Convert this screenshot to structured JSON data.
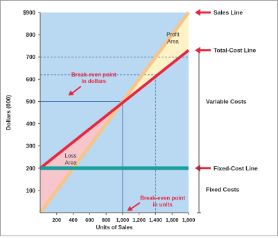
{
  "chart_data": {
    "type": "line",
    "xlabel": "Units of Sales",
    "ylabel": "Dollars (000)",
    "xlim": [
      0,
      1800
    ],
    "ylim": [
      0,
      900
    ],
    "x_ticks": [
      {
        "value": 200,
        "label": "200"
      },
      {
        "value": 400,
        "label": "400"
      },
      {
        "value": 600,
        "label": "600"
      },
      {
        "value": 800,
        "label": "800"
      },
      {
        "value": 1000,
        "label": "1,000"
      },
      {
        "value": 1200,
        "label": "1,200"
      },
      {
        "value": 1400,
        "label": "1,400"
      },
      {
        "value": 1600,
        "label": "1,600"
      },
      {
        "value": 1800,
        "label": "1,800"
      }
    ],
    "y_ticks": [
      {
        "value": 100,
        "label": "100"
      },
      {
        "value": 200,
        "label": "200"
      },
      {
        "value": 300,
        "label": "300"
      },
      {
        "value": 400,
        "label": "400"
      },
      {
        "value": 500,
        "label": "500"
      },
      {
        "value": 600,
        "label": "600"
      },
      {
        "value": 700,
        "label": "700"
      },
      {
        "value": 800,
        "label": "800"
      },
      {
        "value": 900,
        "label": "$900"
      }
    ],
    "series": [
      {
        "name": "Sales Line",
        "color": "#f7c58a",
        "points": [
          [
            0,
            0
          ],
          [
            1800,
            900
          ]
        ]
      },
      {
        "name": "Total-Cost Line",
        "color": "#e8273e",
        "points": [
          [
            0,
            200
          ],
          [
            1800,
            730
          ]
        ]
      },
      {
        "name": "Fixed-Cost Line",
        "color": "#1a9f9c",
        "points": [
          [
            0,
            200
          ],
          [
            1800,
            200
          ]
        ]
      }
    ],
    "legend": {
      "placement": "right",
      "items": [
        {
          "label": "Sales Line",
          "y": 900
        },
        {
          "label": "Total-Cost Line",
          "y": 730
        },
        {
          "label": "Fixed-Cost Line",
          "y": 200
        }
      ]
    },
    "brackets": [
      {
        "label": "Variable Costs",
        "y_range": [
          200,
          730
        ]
      },
      {
        "label": "Fixed Costs",
        "y_range": [
          0,
          200
        ]
      }
    ],
    "regions": [
      {
        "label_lines": [
          "Profit",
          "Area"
        ],
        "fill": "#fdf3c6"
      },
      {
        "label_lines": [
          "Loss",
          "Area"
        ],
        "fill": "#f7c6cc"
      }
    ],
    "annotations": [
      {
        "label_lines": [
          "Break-even point",
          "in dollars"
        ],
        "color": "#e8273e",
        "value": 500
      },
      {
        "label_lines": [
          "Break-even point",
          "in units"
        ],
        "color": "#e8273e",
        "value": 1000
      }
    ],
    "guides": [
      {
        "axis": "y",
        "value": 500,
        "style": "solid"
      },
      {
        "axis": "x",
        "value": 1000,
        "style": "solid"
      },
      {
        "axis": "y",
        "value": 620,
        "style": "dashed"
      },
      {
        "axis": "y",
        "value": 700,
        "style": "dashed"
      },
      {
        "axis": "x",
        "value": 1400,
        "style": "dashed"
      }
    ],
    "colors": {
      "plot_background": "#b9d8f2",
      "guide": "#3a6fb0",
      "arrow": "#e8273e"
    }
  }
}
